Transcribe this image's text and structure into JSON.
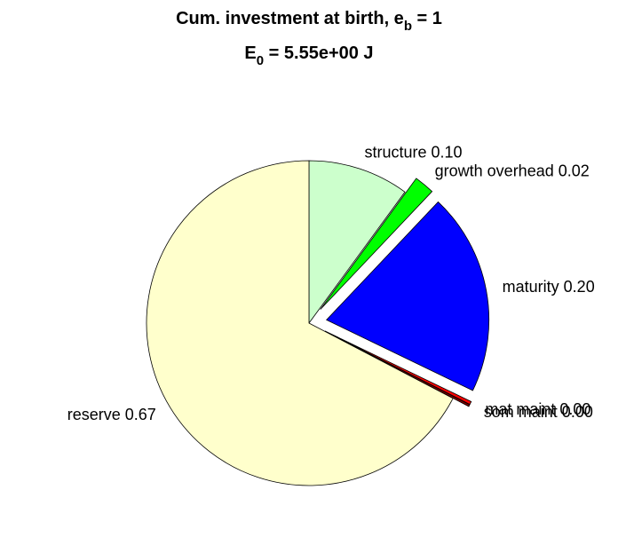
{
  "chart_data": {
    "type": "pie",
    "title": {
      "text": "Cum. investment at birth, e",
      "sub": "b",
      "after": " = 1"
    },
    "subtitle": {
      "text": "E",
      "sub": "0",
      "after": " = 5.55e+00 J"
    },
    "categories": [
      "structure",
      "growth overhead",
      "maturity",
      "mat maint",
      "som maint",
      "reserve"
    ],
    "values": [
      0.1,
      0.02,
      0.2,
      0.003,
      0.002,
      0.67
    ],
    "value_labels": [
      "structure 0.10",
      "growth overhead 0.02",
      "maturity 0.20",
      "mat maint 0.00",
      "som maint 0.00",
      "reserve 0.67"
    ],
    "colors": [
      "#ccffcc",
      "#00ff00",
      "#0000ff",
      "#ff0000",
      "#800000",
      "#ffffcc"
    ],
    "explode": [
      false,
      true,
      true,
      true,
      true,
      false
    ]
  }
}
